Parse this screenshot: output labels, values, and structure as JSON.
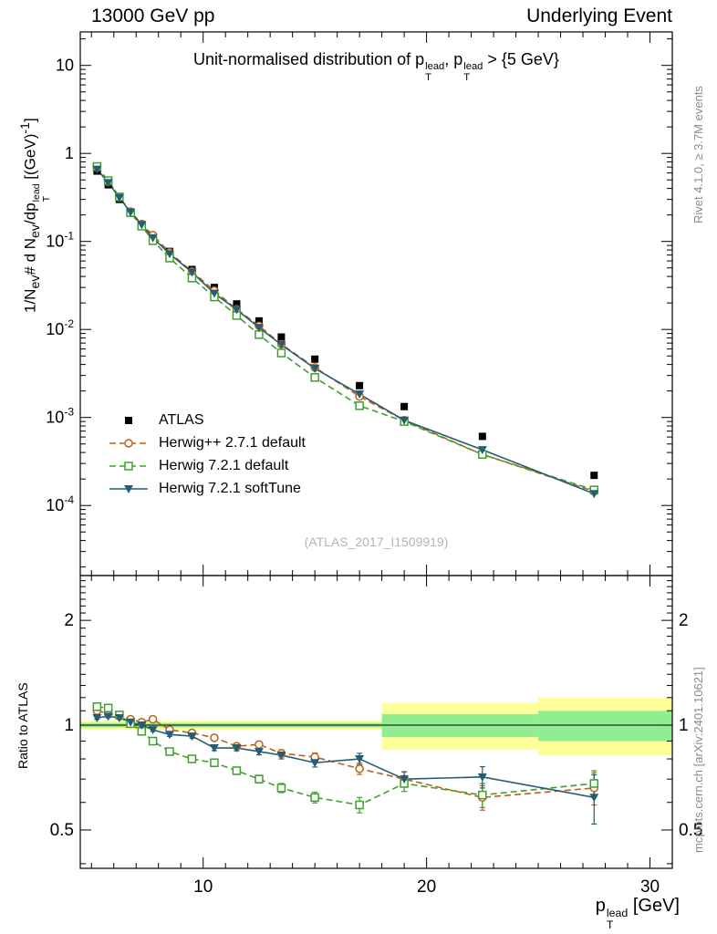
{
  "header": {
    "left": "13000 GeV pp",
    "right": "Underlying Event"
  },
  "side_notes": {
    "top_right": "Rivet 4.1.0, ≥ 3.7M events",
    "bottom_right": "mcplots.cern.ch [arXiv:2401.10621]"
  },
  "watermark": "(ATLAS_2017_I1509919)",
  "title": {
    "t1": "Unit-normalised distribution of p",
    "sup1": "lead",
    "sub1": "T",
    "t2": ", p",
    "sup2": "lead",
    "sub2": "T",
    "t3": " > {5 GeV}"
  },
  "ylabel": {
    "t1": "1/N",
    "sub1": "ev",
    "t2": "# d N",
    "sub2": "ev",
    "t3": "/dp",
    "sub3": "T",
    "sup3": "lead",
    "t4": " [(GeV)",
    "sup4": "-1",
    "t5": "]"
  },
  "xlabel": {
    "t1": "p",
    "sup": "lead",
    "sub": "T",
    "t2": " [GeV]"
  },
  "chart_data": [
    {
      "type": "line",
      "panel": "main",
      "xscale": "linear",
      "xlim": [
        4.5,
        31.0
      ],
      "yscale": "log",
      "ylim": [
        1.6e-05,
        24
      ],
      "grid": false,
      "legend_position": "inside-left-bottom",
      "x": [
        5.25,
        5.75,
        6.25,
        6.75,
        7.25,
        7.75,
        8.5,
        9.5,
        10.5,
        11.5,
        12.5,
        13.5,
        15,
        17,
        19,
        22.5,
        27.5
      ],
      "series": [
        {
          "name": "ATLAS",
          "color": "#000000",
          "marker": "square-filled",
          "line": "none",
          "values": [
            0.63,
            0.44,
            0.3,
            0.21,
            0.155,
            0.113,
            0.077,
            0.048,
            0.03,
            0.0195,
            0.0125,
            0.0082,
            0.0046,
            0.0023,
            0.00133,
            0.00061,
            0.00022
          ]
        },
        {
          "name": "Herwig++ 2.7.1 default",
          "color": "#bf5f18",
          "marker": "circle-open",
          "line": "dashed",
          "values": [
            0.69,
            0.475,
            0.318,
            0.218,
            0.158,
            0.118,
            0.075,
            0.0456,
            0.0276,
            0.017,
            0.011,
            0.0068,
            0.0037,
            0.00173,
            0.00093,
            0.00038,
            0.000145
          ]
        },
        {
          "name": "Herwig 7.2.1 default",
          "color": "#3fa02c",
          "marker": "square-open",
          "line": "dashed",
          "values": [
            0.71,
            0.49,
            0.32,
            0.212,
            0.149,
            0.102,
            0.0647,
            0.0384,
            0.0234,
            0.0144,
            0.00875,
            0.0054,
            0.00285,
            0.00136,
            0.0009,
            0.00038,
            0.00015
          ]
        },
        {
          "name": "Herwig 7.2.1 softTune",
          "color": "#255e74",
          "marker": "triangle-down-filled",
          "line": "solid",
          "values": [
            0.66,
            0.466,
            0.315,
            0.214,
            0.155,
            0.11,
            0.0724,
            0.0446,
            0.0258,
            0.0168,
            0.0105,
            0.0067,
            0.0036,
            0.00184,
            0.00093,
            0.00043,
            0.000136
          ]
        }
      ],
      "y_ticks": [
        {
          "v": 10,
          "label": "10"
        },
        {
          "v": 1,
          "label": "1"
        },
        {
          "v": 0.1,
          "label": "10^-1"
        },
        {
          "v": 0.01,
          "label": "10^-2"
        },
        {
          "v": 0.001,
          "label": "10^-3"
        },
        {
          "v": 0.0001,
          "label": "10^-4"
        }
      ],
      "x_ticks": [
        {
          "v": 10,
          "label": "10"
        },
        {
          "v": 20,
          "label": "20"
        },
        {
          "v": 30,
          "label": "30"
        }
      ]
    },
    {
      "type": "ratio",
      "panel": "ratio",
      "ylabel": "Ratio to ATLAS",
      "yscale": "log",
      "ylim": [
        0.388,
        2.69
      ],
      "band_colors": {
        "yellow": "#ffff99",
        "green": "#90ee90"
      },
      "bands": [
        {
          "x0": 4.5,
          "x1": 18,
          "yellow": [
            0.97,
            1.03
          ],
          "green": [
            0.985,
            1.015
          ]
        },
        {
          "x0": 18,
          "x1": 25,
          "yellow": [
            0.85,
            1.16
          ],
          "green": [
            0.925,
            1.075
          ]
        },
        {
          "x0": 25,
          "x1": 31,
          "yellow": [
            0.82,
            1.2
          ],
          "green": [
            0.9,
            1.1
          ]
        }
      ],
      "reference_line": 1,
      "x": [
        5.25,
        5.75,
        6.25,
        6.75,
        7.25,
        7.75,
        8.5,
        9.5,
        10.5,
        11.5,
        12.5,
        13.5,
        15,
        17,
        19,
        22.5,
        27.5
      ],
      "series": [
        {
          "name": "Herwig++ 2.7.1 default",
          "color": "#bf5f18",
          "marker": "circle-open",
          "line": "dashed",
          "values": [
            1.1,
            1.08,
            1.06,
            1.04,
            1.02,
            1.04,
            0.97,
            0.95,
            0.92,
            0.87,
            0.88,
            0.83,
            0.81,
            0.75,
            0.7,
            0.62,
            0.66
          ],
          "err": [
            0.01,
            0.01,
            0.01,
            0.01,
            0.01,
            0.01,
            0.012,
            0.013,
            0.015,
            0.016,
            0.018,
            0.02,
            0.022,
            0.028,
            0.035,
            0.05,
            0.07
          ]
        },
        {
          "name": "Herwig 7.2.1 default",
          "color": "#3fa02c",
          "marker": "square-open",
          "line": "dashed",
          "values": [
            1.13,
            1.12,
            1.07,
            1.01,
            0.96,
            0.9,
            0.84,
            0.8,
            0.78,
            0.74,
            0.7,
            0.66,
            0.62,
            0.59,
            0.68,
            0.63,
            0.68
          ],
          "err": [
            0.01,
            0.01,
            0.01,
            0.01,
            0.01,
            0.01,
            0.012,
            0.013,
            0.015,
            0.016,
            0.018,
            0.02,
            0.022,
            0.03,
            0.035,
            0.05,
            0.06
          ]
        },
        {
          "name": "Herwig 7.2.1 softTune",
          "color": "#255e74",
          "marker": "triangle-down-filled",
          "line": "solid",
          "values": [
            1.05,
            1.06,
            1.05,
            1.02,
            1.0,
            0.97,
            0.94,
            0.93,
            0.86,
            0.86,
            0.84,
            0.82,
            0.78,
            0.8,
            0.7,
            0.71,
            0.62
          ],
          "err": [
            0.01,
            0.01,
            0.01,
            0.01,
            0.01,
            0.01,
            0.012,
            0.013,
            0.015,
            0.016,
            0.018,
            0.02,
            0.022,
            0.03,
            0.035,
            0.05,
            0.1
          ]
        }
      ],
      "y_ticks": [
        {
          "v": 2,
          "label": "2"
        },
        {
          "v": 1,
          "label": "1"
        },
        {
          "v": 0.5,
          "label": "0.5"
        }
      ]
    }
  ]
}
